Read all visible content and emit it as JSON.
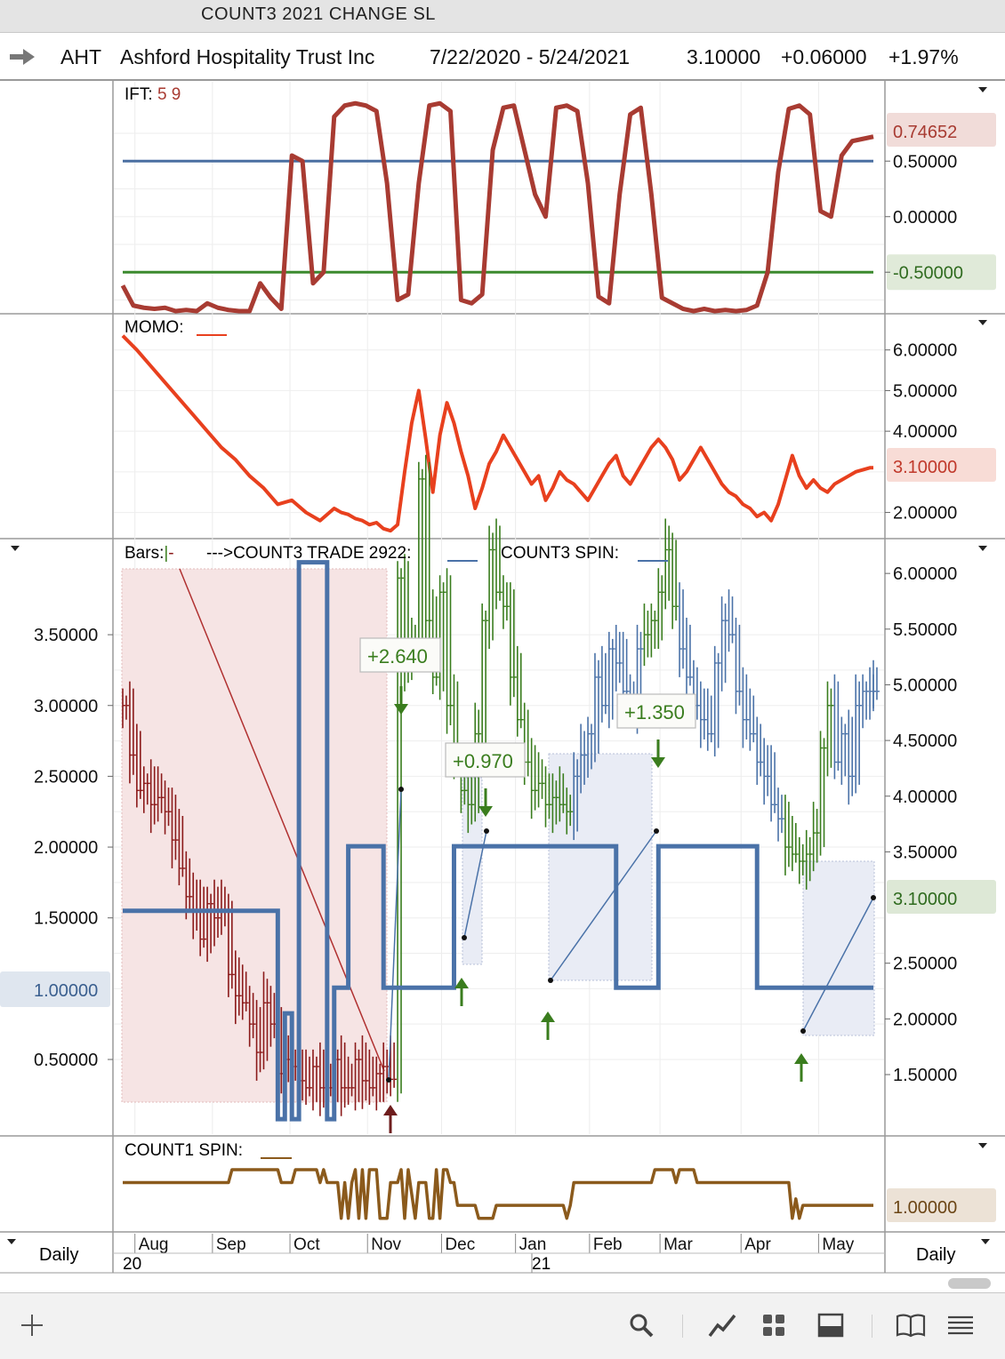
{
  "window": {
    "title": "COUNT3 2021 CHANGE SL"
  },
  "header": {
    "symbol": "AHT",
    "company": "Ashford Hospitality Trust Inc",
    "date_range": "7/22/2020 - 5/24/2021",
    "price": "3.10000",
    "change": "+0.06000",
    "change_pct": "+1.97%"
  },
  "colors": {
    "up": "#3a7d1e",
    "down": "#8b1a1a",
    "ift_line": "#a83b32",
    "momo_line": "#e8401e",
    "spin_line": "#4a72a8",
    "count1_line": "#8b5a1c",
    "level_blue": "#4a6fa1",
    "level_green": "#3b8a2e"
  },
  "panels": {
    "ift": {
      "label": "IFT",
      "params": "5 9",
      "value_tag": "0.74652"
    },
    "momo": {
      "label": "MOMO",
      "value_tag": "3.10000"
    },
    "bars": {
      "label": "Bars",
      "trade_label": "--->COUNT3 TRADE 2922",
      "spin_label": "COUNT3 SPIN",
      "value_tag": "3.10000",
      "left_value_tag": "1.00000"
    },
    "count1": {
      "label": "COUNT1 SPIN",
      "value_tag": "1.00000"
    }
  },
  "footer": {
    "period_left": "Daily",
    "period_right": "Daily",
    "year_start": "20",
    "year_mid": "21"
  },
  "chart_data": [
    {
      "type": "line",
      "name": "IFT",
      "ylim": [
        -0.85,
        1.15
      ],
      "yticks": [
        "0.74652",
        "0.50000",
        "0.00000",
        "-0.50000"
      ],
      "levels": [
        0.5,
        -0.5
      ],
      "x": [
        0,
        3,
        6,
        9,
        12,
        15,
        18,
        21,
        24,
        27,
        30,
        33,
        36,
        39,
        42,
        45,
        48,
        51,
        54,
        57,
        60,
        63,
        66,
        69,
        72,
        75,
        78,
        81,
        84,
        87,
        90,
        93,
        96,
        99,
        102,
        105,
        108,
        111,
        114,
        117,
        120,
        123,
        126,
        129,
        132,
        135,
        138,
        141,
        144,
        147,
        150,
        153,
        156,
        159,
        162,
        165,
        168,
        171,
        174,
        177,
        180,
        183,
        186,
        189,
        192,
        195,
        198,
        201,
        204,
        207,
        210,
        213
      ],
      "values": [
        -0.62,
        -0.8,
        -0.82,
        -0.83,
        -0.82,
        -0.85,
        -0.84,
        -0.85,
        -0.78,
        -0.82,
        -0.84,
        -0.85,
        -0.85,
        -0.6,
        -0.73,
        -0.83,
        0.55,
        0.5,
        -0.6,
        -0.5,
        0.9,
        1.0,
        1.02,
        1.0,
        0.95,
        0.3,
        -0.75,
        -0.7,
        0.3,
        1.0,
        1.02,
        0.95,
        -0.75,
        -0.78,
        -0.7,
        0.6,
        0.98,
        1.0,
        0.6,
        0.2,
        0.0,
        0.98,
        1.0,
        0.95,
        0.3,
        -0.72,
        -0.78,
        0.2,
        0.92,
        0.98,
        0.2,
        -0.73,
        -0.78,
        -0.83,
        -0.85,
        -0.83,
        -0.85,
        -0.84,
        -0.85,
        -0.84,
        -0.8,
        -0.5,
        0.4,
        0.97,
        1.0,
        0.92,
        0.05,
        0.0,
        0.55,
        0.68,
        0.7,
        0.72
      ]
    },
    {
      "type": "line",
      "name": "MOMO",
      "ylim": [
        1.4,
        6.3
      ],
      "yticks": [
        "6.00000",
        "5.00000",
        "4.00000",
        "3.10000",
        "2.00000"
      ],
      "x": [
        0,
        4,
        8,
        12,
        16,
        20,
        24,
        28,
        32,
        36,
        40,
        44,
        48,
        52,
        56,
        60,
        62,
        64,
        66,
        68,
        70,
        72,
        74,
        76,
        78,
        80,
        82,
        84,
        86,
        88,
        90,
        92,
        94,
        96,
        98,
        100,
        102,
        104,
        106,
        108,
        110,
        112,
        114,
        116,
        118,
        120,
        122,
        124,
        126,
        128,
        130,
        132,
        134,
        136,
        138,
        140,
        142,
        144,
        146,
        148,
        150,
        152,
        154,
        156,
        158,
        160,
        162,
        164,
        166,
        168,
        170,
        172,
        174,
        176,
        178,
        180,
        182,
        184,
        186,
        188,
        190,
        192,
        194,
        196,
        198,
        200,
        202,
        204,
        206,
        208,
        210,
        212,
        213
      ],
      "values": [
        6.4,
        6.0,
        5.6,
        5.2,
        4.8,
        4.4,
        4.0,
        3.6,
        3.3,
        2.9,
        2.6,
        2.2,
        2.3,
        2.0,
        1.8,
        2.1,
        2.0,
        1.95,
        1.85,
        1.8,
        1.7,
        1.75,
        1.6,
        1.55,
        1.7,
        3.0,
        4.2,
        5.0,
        3.8,
        2.5,
        3.9,
        4.7,
        4.2,
        3.5,
        2.9,
        2.1,
        2.6,
        3.2,
        3.5,
        3.9,
        3.6,
        3.3,
        3.0,
        2.7,
        2.9,
        2.3,
        2.6,
        3.0,
        2.8,
        2.7,
        2.5,
        2.3,
        2.6,
        2.9,
        3.2,
        3.4,
        2.9,
        2.7,
        3.0,
        3.3,
        3.6,
        3.8,
        3.6,
        3.3,
        2.8,
        3.0,
        3.3,
        3.6,
        3.3,
        3.0,
        2.7,
        2.5,
        2.4,
        2.2,
        2.1,
        1.9,
        2.0,
        1.8,
        2.2,
        2.8,
        3.4,
        2.9,
        2.6,
        2.8,
        2.6,
        2.5,
        2.7,
        2.8,
        2.9,
        3.0,
        3.05,
        3.1,
        3.1
      ]
    },
    {
      "type": "bar",
      "name": "AHT daily bars",
      "left_ylim": [
        0.2,
        3.9
      ],
      "left_yticks": [
        "3.50000",
        "3.00000",
        "2.50000",
        "2.00000",
        "1.50000",
        "1.00000",
        "0.50000"
      ],
      "right_ylim": [
        1.1,
        6.15
      ],
      "right_yticks": [
        "6.00000",
        "5.50000",
        "5.00000",
        "4.50000",
        "4.00000",
        "3.50000",
        "3.10000",
        "2.50000",
        "2.00000",
        "1.50000"
      ],
      "x": [
        0,
        2,
        4,
        6,
        8,
        10,
        12,
        14,
        16,
        18,
        20,
        22,
        24,
        26,
        28,
        30,
        32,
        34,
        36,
        38,
        40,
        42,
        44,
        46,
        48,
        50,
        52,
        54,
        56,
        58,
        60,
        62,
        64,
        66,
        68,
        70,
        72,
        74,
        76,
        78,
        80,
        82,
        84,
        86,
        88,
        90,
        92,
        94,
        96,
        98,
        100,
        102,
        104,
        106,
        108,
        110,
        112,
        114,
        116,
        118,
        120,
        122,
        124,
        126,
        128,
        130,
        132,
        134,
        136,
        138,
        140,
        142,
        144,
        146,
        148,
        150,
        152,
        154,
        156,
        158,
        160,
        162,
        164,
        166,
        168,
        170,
        172,
        174,
        176,
        178,
        180,
        182,
        184,
        186,
        188,
        190,
        192,
        194,
        196,
        198,
        200,
        202,
        204,
        206,
        208,
        210,
        212,
        213
      ],
      "close": [
        3.0,
        2.65,
        2.4,
        2.45,
        2.3,
        2.35,
        2.25,
        2.05,
        1.85,
        1.65,
        1.55,
        1.35,
        1.6,
        1.5,
        1.55,
        1.1,
        0.95,
        0.9,
        0.75,
        0.55,
        0.9,
        0.75,
        0.4,
        0.5,
        0.45,
        0.35,
        0.3,
        0.45,
        0.3,
        0.3,
        0.5,
        0.3,
        0.3,
        0.5,
        0.35,
        0.3,
        0.4,
        0.45,
        0.36,
        3.9,
        3.3,
        3.4,
        4.6,
        3.6,
        3.2,
        3.8,
        3.0,
        2.6,
        2.4,
        2.3,
        2.8,
        3.6,
        4.1,
        3.8,
        3.7,
        3.2,
        2.9,
        2.6,
        2.4,
        2.45,
        2.3,
        2.35,
        2.3,
        2.25,
        2.5,
        2.65,
        2.8,
        3.2,
        3.0,
        3.4,
        3.3,
        3.1,
        3.0,
        3.4,
        3.5,
        3.6,
        3.8,
        4.1,
        3.7,
        3.4,
        3.2,
        3.0,
        2.9,
        2.8,
        3.3,
        3.6,
        3.5,
        3.1,
        2.9,
        2.8,
        2.6,
        2.5,
        2.3,
        2.2,
        2.0,
        1.95,
        1.9,
        1.95,
        2.1,
        2.7,
        3.0,
        2.6,
        2.8,
        2.5,
        3.0,
        3.1,
        3.1,
        3.1
      ],
      "spin_steps": [
        [
          0,
          2.97
        ],
        [
          44,
          2.97
        ],
        [
          44,
          1.1
        ],
        [
          46,
          1.1
        ],
        [
          46,
          2.05
        ],
        [
          48,
          2.05
        ],
        [
          48,
          1.1
        ],
        [
          50,
          1.1
        ],
        [
          50,
          6.1
        ],
        [
          58,
          6.1
        ],
        [
          58,
          1.1
        ],
        [
          60,
          1.1
        ],
        [
          60,
          2.28
        ],
        [
          64,
          2.28
        ],
        [
          64,
          3.55
        ],
        [
          74,
          3.55
        ],
        [
          74,
          2.28
        ],
        [
          94,
          2.28
        ],
        [
          94,
          3.55
        ],
        [
          140,
          3.55
        ],
        [
          140,
          2.28
        ],
        [
          152,
          2.28
        ],
        [
          152,
          3.55
        ],
        [
          180,
          3.55
        ],
        [
          180,
          2.28
        ],
        [
          213,
          2.28
        ]
      ],
      "trades": [
        {
          "label": "+2.640",
          "direction": "up"
        },
        {
          "label": "+0.970",
          "direction": "up"
        },
        {
          "label": "+1.350",
          "direction": "up"
        }
      ]
    },
    {
      "type": "line",
      "name": "COUNT1 SPIN",
      "ylim": [
        0,
        1
      ],
      "value_tag": "1.00000",
      "x": [
        0,
        30,
        31,
        44,
        45,
        48,
        49,
        55,
        56,
        57,
        58,
        61,
        62,
        63,
        64,
        65,
        66,
        67,
        68,
        69,
        70,
        72,
        73,
        75,
        76,
        78,
        79,
        80,
        81,
        83,
        84,
        86,
        87,
        88,
        89,
        90,
        91,
        92,
        93,
        94,
        95,
        100,
        101,
        105,
        106,
        125,
        126,
        127,
        128,
        150,
        151,
        156,
        157,
        158,
        162,
        163,
        164,
        170,
        171,
        180,
        181,
        189,
        190,
        191,
        192,
        193,
        194,
        213
      ],
      "values": [
        0.65,
        0.65,
        0.85,
        0.85,
        0.65,
        0.65,
        0.85,
        0.85,
        0.65,
        0.85,
        0.65,
        0.65,
        0.1,
        0.65,
        0.1,
        0.65,
        0.85,
        0.1,
        0.85,
        0.1,
        0.85,
        0.85,
        0.1,
        0.1,
        0.65,
        0.65,
        0.85,
        0.1,
        0.85,
        0.1,
        0.65,
        0.65,
        0.1,
        0.1,
        0.85,
        0.1,
        0.85,
        0.85,
        0.65,
        0.65,
        0.3,
        0.3,
        0.1,
        0.1,
        0.3,
        0.3,
        0.1,
        0.3,
        0.65,
        0.65,
        0.85,
        0.85,
        0.65,
        0.85,
        0.85,
        0.65,
        0.65,
        0.65,
        0.65,
        0.65,
        0.65,
        0.65,
        0.1,
        0.4,
        0.1,
        0.3,
        0.3,
        0.3
      ]
    }
  ],
  "x_axis": {
    "months": [
      "Aug",
      "Sep",
      "Oct",
      "Nov",
      "Dec",
      "Jan",
      "Feb",
      "Mar",
      "Apr",
      "May"
    ],
    "month_x": [
      8,
      30,
      52,
      74,
      95,
      116,
      137,
      157,
      180,
      202
    ]
  },
  "toolbar": {
    "icons": [
      "plus-icon",
      "search-icon",
      "draw-line-icon",
      "grid-icon",
      "panel-icon",
      "book-icon",
      "menu-icon"
    ]
  }
}
